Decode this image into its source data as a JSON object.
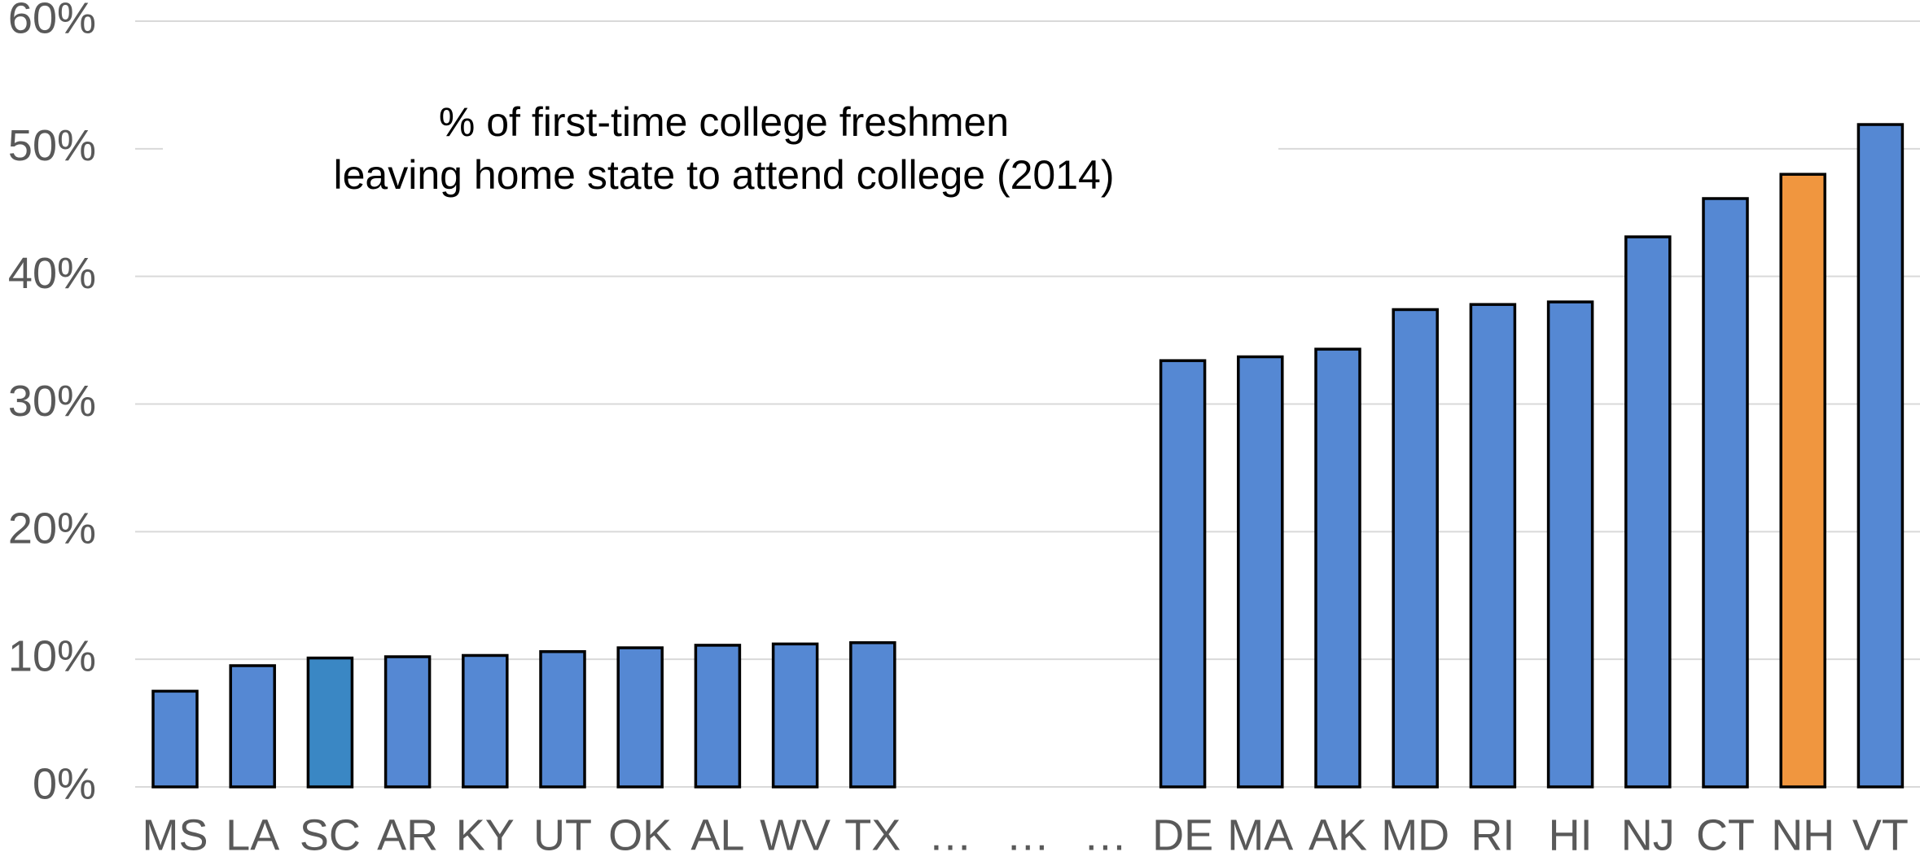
{
  "chart_data": {
    "type": "bar",
    "title": [
      "% of first-time college freshmen",
      "leaving home state to attend college (2014)"
    ],
    "categories": [
      "MS",
      "LA",
      "SC",
      "AR",
      "KY",
      "UT",
      "OK",
      "AL",
      "WV",
      "TX",
      "…",
      "…",
      "…",
      "DE",
      "MA",
      "AK",
      "MD",
      "RI",
      "HI",
      "NJ",
      "CT",
      "NH",
      "VT"
    ],
    "values": [
      7.5,
      9.5,
      10.1,
      10.2,
      10.3,
      10.6,
      10.9,
      11.1,
      11.2,
      11.3,
      null,
      null,
      null,
      33.4,
      33.7,
      34.3,
      37.4,
      37.8,
      38.0,
      43.1,
      46.1,
      48.0,
      51.9
    ],
    "colors": [
      "#5588d3",
      "#5588d3",
      "#3a87c4",
      "#5588d3",
      "#5588d3",
      "#5588d3",
      "#5588d3",
      "#5588d3",
      "#5588d3",
      "#5588d3",
      null,
      null,
      null,
      "#5588d3",
      "#5588d3",
      "#5588d3",
      "#5588d3",
      "#5588d3",
      "#5588d3",
      "#5588d3",
      "#5588d3",
      "#f0963f",
      "#5588d3"
    ],
    "ylim": [
      0,
      60
    ],
    "yticks": [
      {
        "value": 0,
        "label": "0%"
      },
      {
        "value": 10,
        "label": "10%"
      },
      {
        "value": 20,
        "label": "20%"
      },
      {
        "value": 30,
        "label": "30%"
      },
      {
        "value": 40,
        "label": "40%"
      },
      {
        "value": 50,
        "label": "50%"
      },
      {
        "value": 60,
        "label": "60%"
      }
    ],
    "grid": true
  }
}
